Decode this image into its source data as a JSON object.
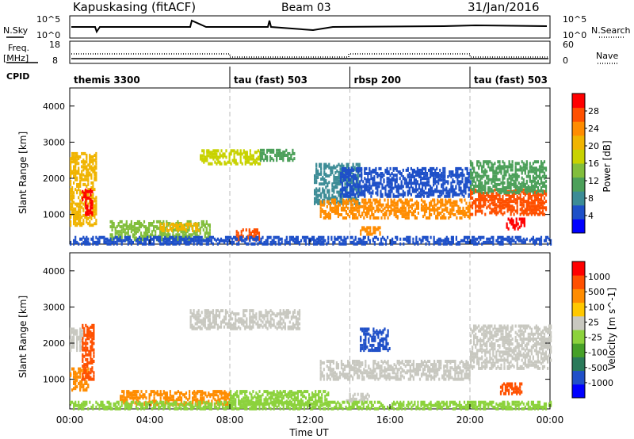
{
  "header": {
    "station": "Kapuskasing (fitACF)",
    "beam": "Beam 03",
    "date": "31/Jan/2016"
  },
  "side_labels": {
    "nsky": "N.Sky",
    "nsearch": "N.Search",
    "freq": "Freq.",
    "mhz": "[MHz]",
    "nave": "Nave",
    "cpid": "CPID"
  },
  "noise_axis": {
    "left_top": "10^5",
    "left_bottom": "10^0",
    "right_top": "10^5",
    "right_bottom": "10^0"
  },
  "freq_axis": {
    "left_top": "18",
    "left_bottom": "8",
    "right_top": "60",
    "right_bottom": "0"
  },
  "cpid_segments": [
    {
      "label": "themis 3300",
      "start_hour": 0
    },
    {
      "label": "tau (fast) 503",
      "start_hour": 8
    },
    {
      "label": "rbsp 200",
      "start_hour": 14
    },
    {
      "label": "tau (fast) 503",
      "start_hour": 20
    }
  ],
  "colors": {
    "power_scale": [
      "#0000ff",
      "#1e50c8",
      "#3c8c96",
      "#4ca05a",
      "#82be3c",
      "#c8d200",
      "#f0b400",
      "#ff8c00",
      "#ff5000",
      "#ff0000"
    ],
    "velocity_scale": [
      "#0000ff",
      "#2050c8",
      "#2a7a5a",
      "#46a028",
      "#8cd23c",
      "#c8c8c0",
      "#ffc800",
      "#ff8c00",
      "#ff5000",
      "#ff0000"
    ],
    "ground_scatter": "#b4b4b4"
  },
  "chart_data": [
    {
      "type": "heatmap",
      "name": "",
      "ylabel": "Slant Range [km]",
      "colorbar_label": "Power [dB]",
      "colorbar_ticks": [
        "28",
        "24",
        "20",
        "16",
        "12",
        "8",
        "4"
      ],
      "xlim_hours": [
        0,
        24
      ],
      "ylim": [
        180,
        4500
      ],
      "yticks": [
        "4000",
        "3000",
        "2000",
        "1000"
      ],
      "regions": [
        {
          "t0": 0.0,
          "t1": 1.3,
          "r0": 700,
          "r1": 2700,
          "level": 6
        },
        {
          "t0": 0.6,
          "t1": 1.1,
          "r0": 1000,
          "r1": 1700,
          "level": 9
        },
        {
          "t0": 2.0,
          "t1": 7.0,
          "r0": 300,
          "r1": 800,
          "level": 4
        },
        {
          "t0": 4.5,
          "t1": 6.5,
          "r0": 550,
          "r1": 750,
          "level": 6
        },
        {
          "t0": 6.5,
          "t1": 9.5,
          "r0": 2400,
          "r1": 2800,
          "level": 5
        },
        {
          "t0": 9.5,
          "t1": 11.2,
          "r0": 2500,
          "r1": 2800,
          "level": 3
        },
        {
          "t0": 8.3,
          "t1": 9.5,
          "r0": 300,
          "r1": 600,
          "level": 8
        },
        {
          "t0": 12.2,
          "t1": 14.5,
          "r0": 1300,
          "r1": 2400,
          "level": 2
        },
        {
          "t0": 12.5,
          "t1": 20.0,
          "r0": 900,
          "r1": 1400,
          "level": 7
        },
        {
          "t0": 13.5,
          "t1": 20.0,
          "r0": 1500,
          "r1": 2300,
          "level": 1
        },
        {
          "t0": 20.0,
          "t1": 23.8,
          "r0": 1000,
          "r1": 1700,
          "level": 8
        },
        {
          "t0": 20.0,
          "t1": 23.8,
          "r0": 1600,
          "r1": 2500,
          "level": 3
        },
        {
          "t0": 21.8,
          "t1": 22.7,
          "r0": 600,
          "r1": 900,
          "level": 9
        },
        {
          "t0": 14.5,
          "t1": 15.5,
          "r0": 450,
          "r1": 650,
          "level": 7
        },
        {
          "t0": 0.0,
          "t1": 24.0,
          "r0": 180,
          "r1": 380,
          "level": 1
        }
      ]
    },
    {
      "type": "heatmap",
      "name": "",
      "ylabel": "Slant Range [km]",
      "xlabel": "Time UT",
      "colorbar_label": "Velocity [m s^-1]",
      "colorbar_ticks": [
        "1000",
        "500",
        "100",
        "25",
        "-25",
        "-100",
        "-500",
        "-1000"
      ],
      "xlim_hours": [
        0,
        24
      ],
      "ylim": [
        180,
        4500
      ],
      "yticks": [
        "4000",
        "3000",
        "2000",
        "1000"
      ],
      "xticks": [
        "00:00",
        "04:00",
        "08:00",
        "12:00",
        "16:00",
        "20:00",
        "00:00"
      ],
      "regions": [
        {
          "t0": 0.0,
          "t1": 0.7,
          "r0": 1800,
          "r1": 2400,
          "level": 5
        },
        {
          "t0": 0.0,
          "t1": 0.9,
          "r0": 700,
          "r1": 1300,
          "level": 7
        },
        {
          "t0": 0.6,
          "t1": 1.2,
          "r0": 1000,
          "r1": 2500,
          "level": 8
        },
        {
          "t0": 6.0,
          "t1": 11.5,
          "r0": 2400,
          "r1": 2900,
          "level": 5
        },
        {
          "t0": 2.5,
          "t1": 8.0,
          "r0": 300,
          "r1": 700,
          "level": 7
        },
        {
          "t0": 8.0,
          "t1": 13.0,
          "r0": 300,
          "r1": 700,
          "level": 4
        },
        {
          "t0": 12.5,
          "t1": 20.0,
          "r0": 1000,
          "r1": 1500,
          "level": 5
        },
        {
          "t0": 14.5,
          "t1": 16.0,
          "r0": 1800,
          "r1": 2400,
          "level": 1
        },
        {
          "t0": 20.0,
          "t1": 24.0,
          "r0": 1300,
          "r1": 2500,
          "level": 5
        },
        {
          "t0": 21.5,
          "t1": 22.6,
          "r0": 600,
          "r1": 900,
          "level": 8
        },
        {
          "t0": 13.8,
          "t1": 15.0,
          "r0": 400,
          "r1": 600,
          "level": 5
        },
        {
          "t0": 0.0,
          "t1": 24.0,
          "r0": 180,
          "r1": 400,
          "level": 4
        }
      ]
    }
  ]
}
